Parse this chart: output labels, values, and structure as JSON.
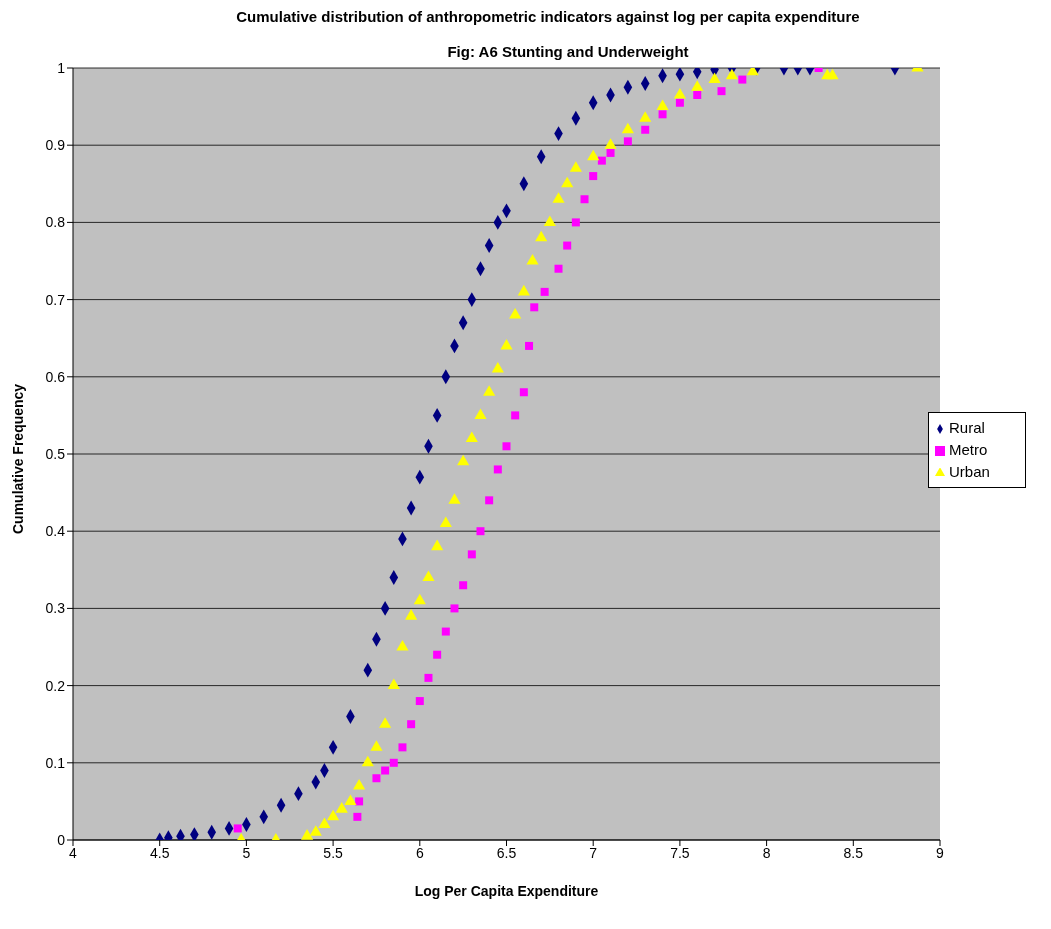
{
  "chart_data": {
    "type": "scatter",
    "title": "Cumulative distribution of anthropometric indicators against log per capita expenditure",
    "subtitle": "Fig: A6 Stunting and Underweight",
    "xlabel": "Log Per Capita Expenditure",
    "ylabel": "Cumulative Frequency",
    "xlim": [
      4,
      9
    ],
    "xticks": [
      4,
      4.5,
      5,
      5.5,
      6,
      6.5,
      7,
      7.5,
      8,
      8.5,
      9
    ],
    "ylim": [
      0,
      1
    ],
    "yticks": [
      0,
      0.1,
      0.2,
      0.3,
      0.4,
      0.5,
      0.6,
      0.7,
      0.8,
      0.9,
      1
    ],
    "grid": "y",
    "legend": "right",
    "series": [
      {
        "name": "Rural",
        "color": "#000080",
        "marker": "diamond",
        "x": [
          4.5,
          4.55,
          4.62,
          4.7,
          4.8,
          4.9,
          5.0,
          5.1,
          5.2,
          5.3,
          5.4,
          5.45,
          5.5,
          5.6,
          5.7,
          5.75,
          5.8,
          5.85,
          5.9,
          5.95,
          6.0,
          6.05,
          6.1,
          6.15,
          6.2,
          6.25,
          6.3,
          6.35,
          6.4,
          6.45,
          6.5,
          6.6,
          6.7,
          6.8,
          6.9,
          7.0,
          7.1,
          7.2,
          7.3,
          7.4,
          7.5,
          7.6,
          7.7,
          7.8,
          7.94,
          8.1,
          8.18,
          8.25,
          8.74
        ],
        "values": [
          0,
          0.003,
          0.005,
          0.007,
          0.01,
          0.015,
          0.02,
          0.03,
          0.045,
          0.06,
          0.075,
          0.09,
          0.12,
          0.16,
          0.22,
          0.26,
          0.3,
          0.34,
          0.39,
          0.43,
          0.47,
          0.51,
          0.55,
          0.6,
          0.64,
          0.67,
          0.7,
          0.74,
          0.77,
          0.8,
          0.815,
          0.85,
          0.885,
          0.915,
          0.935,
          0.955,
          0.965,
          0.975,
          0.98,
          0.99,
          0.992,
          0.995,
          0.998,
          1,
          1,
          1,
          1,
          1,
          1
        ]
      },
      {
        "name": "Metro",
        "color": "#ff00ff",
        "marker": "square",
        "x": [
          4.95,
          5.64,
          5.65,
          5.75,
          5.8,
          5.85,
          5.9,
          5.95,
          6.0,
          6.05,
          6.1,
          6.15,
          6.2,
          6.25,
          6.3,
          6.35,
          6.4,
          6.45,
          6.5,
          6.55,
          6.6,
          6.63,
          6.66,
          6.72,
          6.8,
          6.85,
          6.9,
          6.95,
          7.0,
          7.05,
          7.1,
          7.2,
          7.3,
          7.4,
          7.5,
          7.6,
          7.74,
          7.86,
          8.3
        ],
        "values": [
          0.015,
          0.03,
          0.05,
          0.08,
          0.09,
          0.1,
          0.12,
          0.15,
          0.18,
          0.21,
          0.24,
          0.27,
          0.3,
          0.33,
          0.37,
          0.4,
          0.44,
          0.48,
          0.51,
          0.55,
          0.58,
          0.64,
          0.69,
          0.71,
          0.74,
          0.77,
          0.8,
          0.83,
          0.86,
          0.88,
          0.89,
          0.905,
          0.92,
          0.94,
          0.955,
          0.965,
          0.97,
          0.985,
          1
        ]
      },
      {
        "name": "Urban",
        "color": "#ffff00",
        "marker": "triangle",
        "x": [
          4.97,
          5.17,
          5.35,
          5.4,
          5.45,
          5.5,
          5.55,
          5.6,
          5.65,
          5.7,
          5.75,
          5.8,
          5.85,
          5.9,
          5.95,
          6.0,
          6.05,
          6.1,
          6.15,
          6.2,
          6.25,
          6.3,
          6.35,
          6.4,
          6.45,
          6.5,
          6.55,
          6.6,
          6.65,
          6.7,
          6.75,
          6.8,
          6.85,
          6.9,
          7.0,
          7.1,
          7.2,
          7.3,
          7.4,
          7.5,
          7.6,
          7.7,
          7.8,
          7.92,
          8.35,
          8.38,
          8.87
        ],
        "values": [
          0,
          0,
          0.005,
          0.01,
          0.02,
          0.03,
          0.04,
          0.05,
          0.07,
          0.1,
          0.12,
          0.15,
          0.2,
          0.25,
          0.29,
          0.31,
          0.34,
          0.38,
          0.41,
          0.44,
          0.49,
          0.52,
          0.55,
          0.58,
          0.61,
          0.64,
          0.68,
          0.71,
          0.75,
          0.78,
          0.8,
          0.83,
          0.85,
          0.87,
          0.885,
          0.9,
          0.92,
          0.935,
          0.95,
          0.965,
          0.975,
          0.985,
          0.99,
          0.995,
          0.99,
          0.99,
          1
        ]
      }
    ]
  }
}
